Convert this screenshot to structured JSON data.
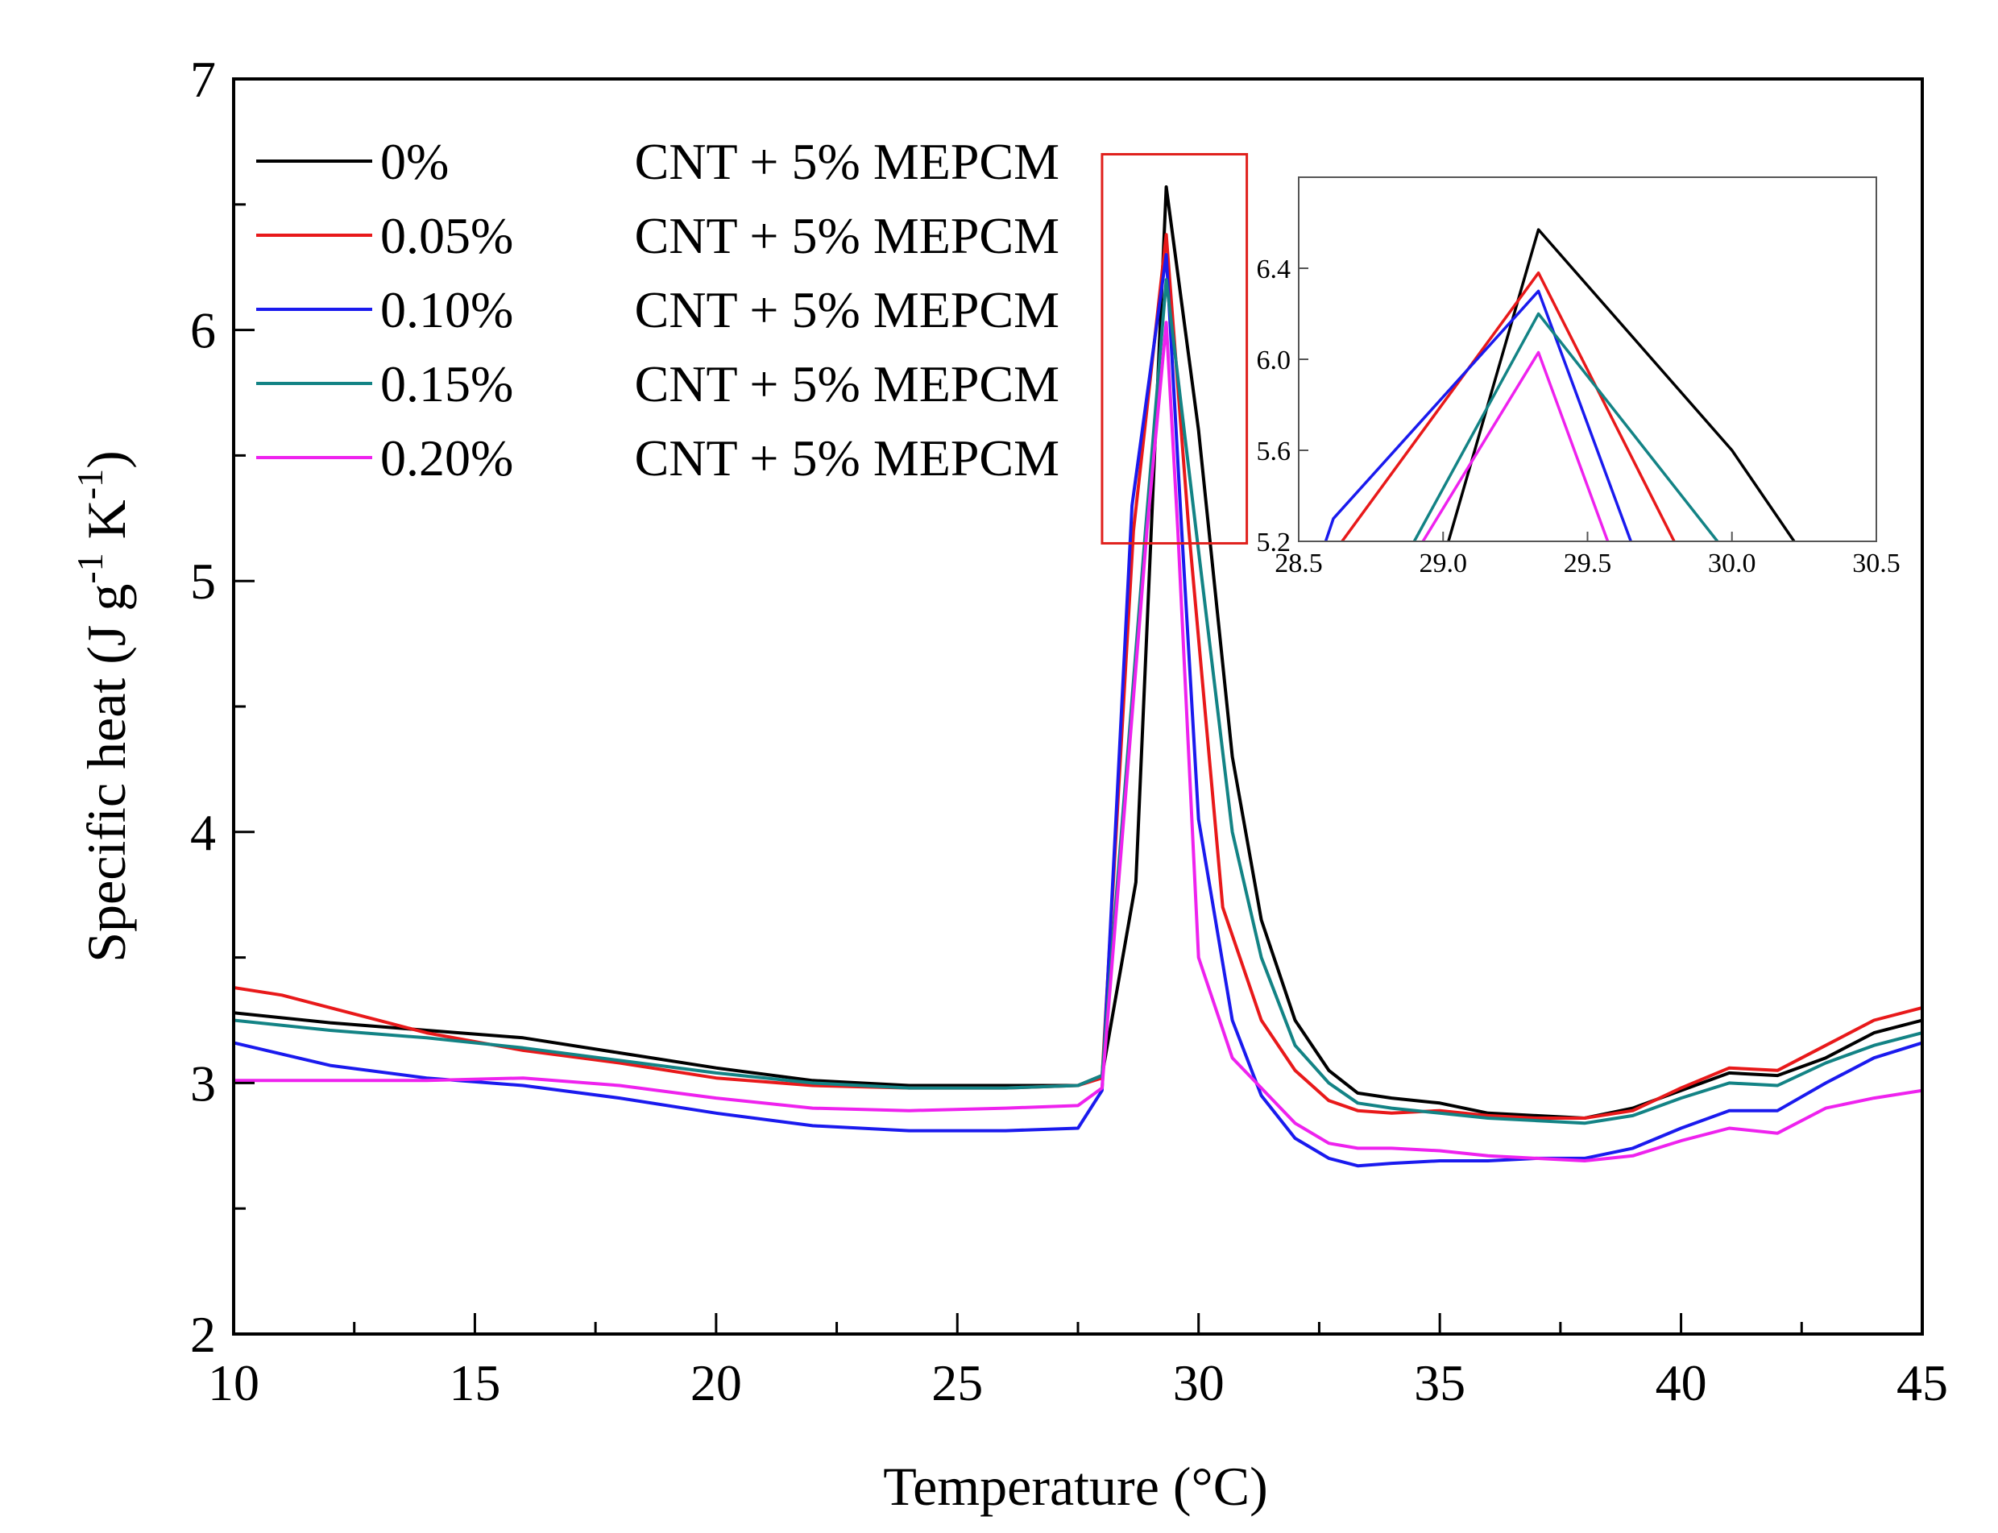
{
  "chart_data": {
    "type": "line",
    "title": "",
    "xlabel": "Temperature (°C)",
    "ylabel_parts": {
      "prefix": "Specific heat (J g",
      "sup1": "-1",
      "mid": " K",
      "sup2": "-1",
      "suffix": ")"
    },
    "xlim": [
      10,
      45
    ],
    "ylim": [
      2,
      7
    ],
    "xticks": [
      10,
      15,
      20,
      25,
      30,
      35,
      40,
      45
    ],
    "yticks": [
      2,
      3,
      4,
      5,
      6,
      7
    ],
    "highlight_box": {
      "x_range": [
        28.0,
        31.0
      ],
      "y_range": [
        5.15,
        6.7
      ],
      "color": "#e0201c"
    },
    "legend_position": "top-left",
    "series": [
      {
        "name": "0% CNT + 5% MEPCM",
        "legend_left": "0%",
        "legend_right": "CNT + 5% MEPCM",
        "color": "#000000",
        "points": [
          [
            10,
            3.28
          ],
          [
            12,
            3.24
          ],
          [
            14,
            3.21
          ],
          [
            16,
            3.18
          ],
          [
            18,
            3.12
          ],
          [
            20,
            3.06
          ],
          [
            22,
            3.01
          ],
          [
            24,
            2.99
          ],
          [
            26,
            2.99
          ],
          [
            27.5,
            2.99
          ],
          [
            28,
            3.03
          ],
          [
            28.7,
            3.8
          ],
          [
            29.33,
            6.57
          ],
          [
            30,
            5.6
          ],
          [
            30.7,
            4.3
          ],
          [
            31.3,
            3.65
          ],
          [
            32,
            3.25
          ],
          [
            32.7,
            3.05
          ],
          [
            33.3,
            2.96
          ],
          [
            34,
            2.94
          ],
          [
            35,
            2.92
          ],
          [
            36,
            2.88
          ],
          [
            37,
            2.87
          ],
          [
            38,
            2.86
          ],
          [
            39,
            2.9
          ],
          [
            40,
            2.97
          ],
          [
            41,
            3.04
          ],
          [
            42,
            3.03
          ],
          [
            43,
            3.1
          ],
          [
            44,
            3.2
          ],
          [
            45,
            3.25
          ]
        ]
      },
      {
        "name": "0.05% CNT + 5% MEPCM",
        "legend_left": "0.05%",
        "legend_right": "CNT + 5% MEPCM",
        "color": "#e8191a",
        "points": [
          [
            10,
            3.38
          ],
          [
            11,
            3.35
          ],
          [
            12,
            3.3
          ],
          [
            14,
            3.2
          ],
          [
            16,
            3.13
          ],
          [
            18,
            3.08
          ],
          [
            20,
            3.02
          ],
          [
            22,
            2.99
          ],
          [
            24,
            2.98
          ],
          [
            26,
            2.98
          ],
          [
            27.5,
            2.99
          ],
          [
            28,
            3.02
          ],
          [
            28.65,
            5.2
          ],
          [
            29.33,
            6.38
          ],
          [
            29.8,
            5.2
          ],
          [
            30.5,
            3.7
          ],
          [
            31.3,
            3.25
          ],
          [
            32,
            3.05
          ],
          [
            32.7,
            2.93
          ],
          [
            33.3,
            2.89
          ],
          [
            34,
            2.88
          ],
          [
            35,
            2.89
          ],
          [
            36,
            2.87
          ],
          [
            37,
            2.86
          ],
          [
            38,
            2.86
          ],
          [
            39,
            2.89
          ],
          [
            40,
            2.98
          ],
          [
            41,
            3.06
          ],
          [
            42,
            3.05
          ],
          [
            43,
            3.15
          ],
          [
            44,
            3.25
          ],
          [
            45,
            3.3
          ]
        ]
      },
      {
        "name": "0.10% CNT + 5% MEPCM",
        "legend_left": "0.10%",
        "legend_right": "CNT + 5% MEPCM",
        "color": "#1a1aee",
        "points": [
          [
            10,
            3.16
          ],
          [
            12,
            3.07
          ],
          [
            14,
            3.02
          ],
          [
            16,
            2.99
          ],
          [
            18,
            2.94
          ],
          [
            20,
            2.88
          ],
          [
            22,
            2.83
          ],
          [
            24,
            2.81
          ],
          [
            26,
            2.81
          ],
          [
            27.5,
            2.82
          ],
          [
            28,
            2.97
          ],
          [
            28.62,
            5.3
          ],
          [
            29.33,
            6.3
          ],
          [
            29.65,
            5.2
          ],
          [
            30,
            4.05
          ],
          [
            30.7,
            3.25
          ],
          [
            31.3,
            2.95
          ],
          [
            32,
            2.78
          ],
          [
            32.7,
            2.7
          ],
          [
            33.3,
            2.67
          ],
          [
            34,
            2.68
          ],
          [
            35,
            2.69
          ],
          [
            36,
            2.69
          ],
          [
            37,
            2.7
          ],
          [
            38,
            2.7
          ],
          [
            39,
            2.74
          ],
          [
            40,
            2.82
          ],
          [
            41,
            2.89
          ],
          [
            42,
            2.89
          ],
          [
            43,
            3.0
          ],
          [
            44,
            3.1
          ],
          [
            45,
            3.16
          ]
        ]
      },
      {
        "name": "0.15% CNT + 5% MEPCM",
        "legend_left": "0.15%",
        "legend_right": "CNT + 5% MEPCM",
        "color": "#138385",
        "points": [
          [
            10,
            3.25
          ],
          [
            12,
            3.21
          ],
          [
            14,
            3.18
          ],
          [
            16,
            3.14
          ],
          [
            18,
            3.09
          ],
          [
            20,
            3.04
          ],
          [
            22,
            3.0
          ],
          [
            24,
            2.98
          ],
          [
            26,
            2.98
          ],
          [
            27.5,
            2.99
          ],
          [
            28,
            3.03
          ],
          [
            28.9,
            5.2
          ],
          [
            29.33,
            6.2
          ],
          [
            29.95,
            5.2
          ],
          [
            30.7,
            4.0
          ],
          [
            31.3,
            3.5
          ],
          [
            32,
            3.15
          ],
          [
            32.7,
            3.0
          ],
          [
            33.3,
            2.92
          ],
          [
            34,
            2.9
          ],
          [
            35,
            2.88
          ],
          [
            36,
            2.86
          ],
          [
            37,
            2.85
          ],
          [
            38,
            2.84
          ],
          [
            39,
            2.87
          ],
          [
            40,
            2.94
          ],
          [
            41,
            3.0
          ],
          [
            42,
            2.99
          ],
          [
            43,
            3.08
          ],
          [
            44,
            3.15
          ],
          [
            45,
            3.2
          ]
        ]
      },
      {
        "name": "0.20% CNT + 5% MEPCM",
        "legend_left": "0.20%",
        "legend_right": "CNT + 5% MEPCM",
        "color": "#ee22ee",
        "points": [
          [
            10,
            3.01
          ],
          [
            12,
            3.01
          ],
          [
            14,
            3.01
          ],
          [
            16,
            3.02
          ],
          [
            18,
            2.99
          ],
          [
            20,
            2.94
          ],
          [
            22,
            2.9
          ],
          [
            24,
            2.89
          ],
          [
            26,
            2.9
          ],
          [
            27.5,
            2.91
          ],
          [
            28,
            2.98
          ],
          [
            28.93,
            5.2
          ],
          [
            29.33,
            6.03
          ],
          [
            29.57,
            5.2
          ],
          [
            30,
            3.5
          ],
          [
            30.7,
            3.1
          ],
          [
            31.3,
            2.98
          ],
          [
            32,
            2.84
          ],
          [
            32.7,
            2.76
          ],
          [
            33.3,
            2.74
          ],
          [
            34,
            2.74
          ],
          [
            35,
            2.73
          ],
          [
            36,
            2.71
          ],
          [
            37,
            2.7
          ],
          [
            38,
            2.69
          ],
          [
            39,
            2.71
          ],
          [
            40,
            2.77
          ],
          [
            41,
            2.82
          ],
          [
            42,
            2.8
          ],
          [
            43,
            2.9
          ],
          [
            44,
            2.94
          ],
          [
            45,
            2.97
          ]
        ]
      }
    ],
    "inset": {
      "xlim": [
        28.5,
        30.5
      ],
      "ylim": [
        5.2,
        6.8
      ],
      "xticks": [
        "28.5",
        "29.0",
        "29.5",
        "30.0",
        "30.5"
      ],
      "yticks": [
        "5.2",
        "5.6",
        "6.0",
        "6.4"
      ]
    }
  }
}
